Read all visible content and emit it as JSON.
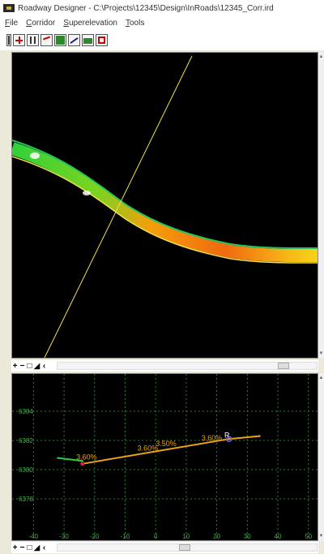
{
  "window": {
    "title": "Roadway Designer - C:\\Projects\\12345\\Design\\InRoads\\12345_Corr.ird"
  },
  "menu": [
    {
      "label": "File"
    },
    {
      "label": "Corridor"
    },
    {
      "label": "Superelevation"
    },
    {
      "label": "Tools"
    }
  ],
  "toolbar": {
    "icons": [
      "design-stations-icon",
      "template-drops-icon",
      "point-controls-icon",
      "parametric-constraints-icon",
      "display-references-icon",
      "target-aliasing-icon",
      "create-surface-icon",
      "corridor-settings-icon"
    ]
  },
  "view_controls": {
    "zoom_in": "+",
    "zoom_out": "−",
    "fit": "□",
    "pan": "◢",
    "scroll_left": "‹"
  },
  "colors": {
    "background": "#000000",
    "grid": "#2e7d32",
    "axis_labels": "#3cb043",
    "template_line": "#e8a317",
    "station_line": "#f3e14a",
    "corridor_edge": "#22c55e",
    "corridor_mid": "#f97316"
  },
  "chart_data": {
    "type": "line",
    "title": "",
    "xlabel": "",
    "ylabel": "",
    "xlim": [
      -47,
      53
    ],
    "ylim": [
      6376,
      6386
    ],
    "x_ticks": [
      "-40",
      "-30",
      "-20",
      "-10",
      "0",
      "10",
      "20",
      "30",
      "40",
      "50"
    ],
    "y_ticks": [
      "6384",
      "6382",
      "6380",
      "6378"
    ],
    "grid": true,
    "series": [
      {
        "color": "#e8a317",
        "points": [
          [
            -24,
            6380.4
          ],
          [
            24,
            6382.1
          ],
          [
            34,
            6382.3
          ]
        ]
      },
      {
        "color": "#2ecc40",
        "points": [
          [
            -32,
            6380.8
          ],
          [
            -24,
            6380.6
          ]
        ]
      }
    ],
    "annotations": [
      "3.60%",
      "3.60%",
      "3.50%",
      "3.60%"
    ],
    "point_labels": [
      "R"
    ]
  }
}
